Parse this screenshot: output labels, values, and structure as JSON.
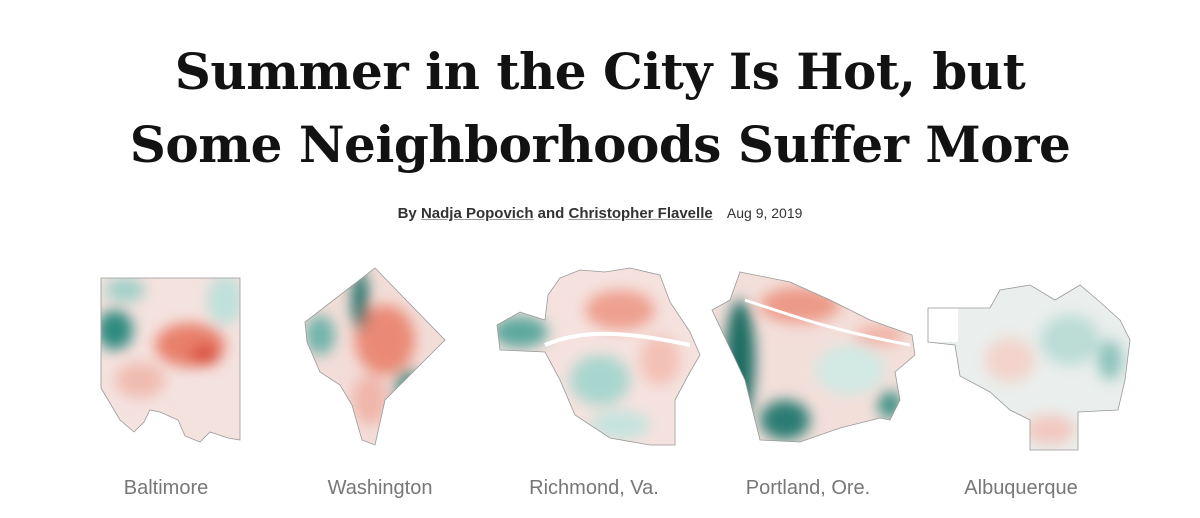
{
  "header": {
    "title_lines": [
      "Summer in the City Is Hot, but",
      "Some Neighborhoods Suffer More"
    ]
  },
  "byline": {
    "prefix": "By",
    "author_1": "Nadja Popovich",
    "joiner": "and",
    "author_2": "Christopher Flavelle",
    "date": "Aug 9, 2019"
  },
  "maps": [
    {
      "label": "Baltimore"
    },
    {
      "label": "Washington"
    },
    {
      "label": "Richmond, Va."
    },
    {
      "label": "Portland, Ore."
    },
    {
      "label": "Albuquerque"
    }
  ]
}
